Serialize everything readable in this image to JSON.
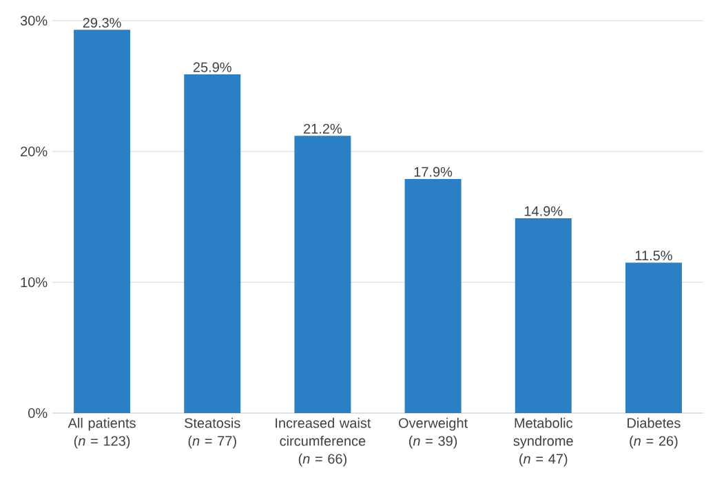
{
  "chart_data": {
    "type": "bar",
    "categories": [
      "All patients (*n* = 123)",
      "Steatosis (*n* = 77)",
      "Increased waist circumference (*n* = 66)",
      "Overweight (*n* = 39)",
      "Metabolic syndrome (*n* = 47)",
      "Diabetes (*n* = 26)"
    ],
    "values": [
      29.3,
      25.9,
      21.2,
      17.9,
      14.9,
      11.5
    ],
    "value_labels": [
      "29.3%",
      "25.9%",
      "21.2%",
      "17.9%",
      "14.9%",
      "11.5%"
    ],
    "color": "#2b80c5",
    "ylim": [
      0,
      30
    ],
    "yticks": [
      {
        "value": 0,
        "label": "0%"
      },
      {
        "value": 10,
        "label": "10%"
      },
      {
        "value": 20,
        "label": "20%"
      },
      {
        "value": 30,
        "label": "30%"
      }
    ],
    "grid": "y"
  }
}
